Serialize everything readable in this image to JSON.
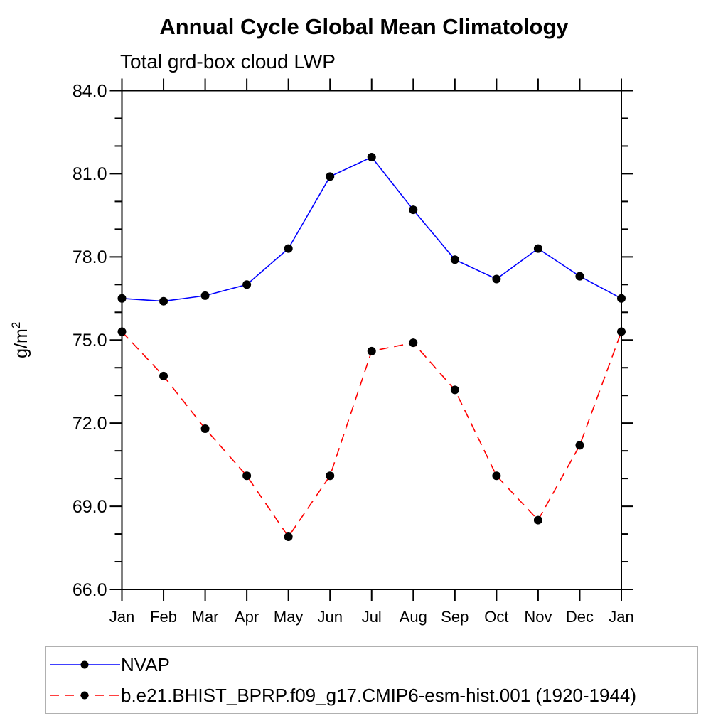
{
  "page": {
    "title": "Annual Cycle Global Mean Climatology",
    "subtitle": "Total grd-box cloud LWP"
  },
  "y_axis": {
    "label_base": "g/m",
    "label_exponent": "2",
    "min": 66,
    "max": 84,
    "major_step": 3,
    "minor_step": 1,
    "tick_labels": [
      "66.0",
      "69.0",
      "72.0",
      "75.0",
      "78.0",
      "81.0",
      "84.0"
    ]
  },
  "x_axis": {
    "labels": [
      "Jan",
      "Feb",
      "Mar",
      "Apr",
      "May",
      "Jun",
      "Jul",
      "Aug",
      "Sep",
      "Oct",
      "Nov",
      "Dec",
      "Jan"
    ]
  },
  "chart_data": {
    "type": "line",
    "title": "Annual Cycle Global Mean Climatology",
    "subtitle": "Total grd-box cloud LWP",
    "ylabel": "g/m2",
    "xlabel": "",
    "ylim": [
      66,
      84
    ],
    "yticks": [
      66,
      69,
      72,
      75,
      78,
      81,
      84
    ],
    "grid": false,
    "legend_position": "bottom-left",
    "categories": [
      "Jan",
      "Feb",
      "Mar",
      "Apr",
      "May",
      "Jun",
      "Jul",
      "Aug",
      "Sep",
      "Oct",
      "Nov",
      "Dec",
      "Jan"
    ],
    "series": [
      {
        "name": "NVAP",
        "color": "#0000ff",
        "line_style": "solid",
        "marker": "filled-circle",
        "marker_color": "#000000",
        "values": [
          76.5,
          76.4,
          76.6,
          77.0,
          78.3,
          80.9,
          81.6,
          79.7,
          77.9,
          77.2,
          78.3,
          77.3,
          76.5
        ]
      },
      {
        "name": "b.e21.BHIST_BPRP.f09_g17.CMIP6-esm-hist.001 (1920-1944)",
        "color": "#ff0000",
        "line_style": "dashed",
        "marker": "filled-circle",
        "marker_color": "#000000",
        "values": [
          75.3,
          73.7,
          71.8,
          70.1,
          67.9,
          70.1,
          74.6,
          74.9,
          73.2,
          70.1,
          68.5,
          71.2,
          75.3
        ]
      }
    ]
  },
  "legend": {
    "items": [
      {
        "label": "NVAP"
      },
      {
        "label": "b.e21.BHIST_BPRP.f09_g17.CMIP6-esm-hist.001 (1920-1944)"
      }
    ]
  },
  "colors": {
    "series_blue": "#0000ff",
    "series_red": "#ff0000",
    "marker": "#000000",
    "axis": "#000000",
    "legend_border": "#b0b0b0"
  }
}
